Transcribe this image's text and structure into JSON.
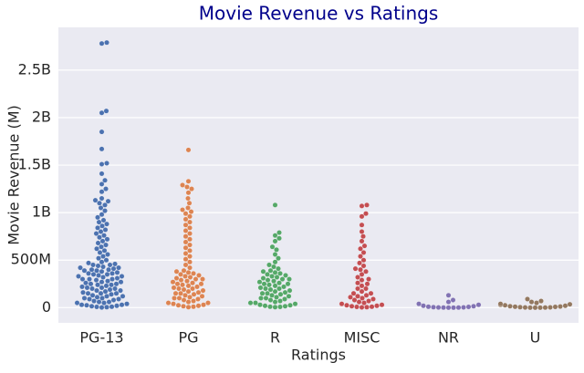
{
  "chart_data": {
    "type": "swarm",
    "title": "Movie Revenue vs Ratings",
    "x_label": "Ratings",
    "y_label": "Movie Revenue (M)",
    "categories": [
      "PG-13",
      "PG",
      "R",
      "MISC",
      "NR",
      "U"
    ],
    "colors": [
      "#4c72b0",
      "#dd8452",
      "#55a868",
      "#c44e52",
      "#8172b3",
      "#937860"
    ],
    "values": [
      [
        2790,
        2780,
        2070,
        2050,
        1850,
        1670,
        1520,
        1510,
        1410,
        1340,
        1300,
        1250,
        1220,
        1150,
        1130,
        1120,
        1100,
        1080,
        1050,
        1020,
        980,
        950,
        920,
        900,
        880,
        860,
        840,
        820,
        800,
        780,
        760,
        740,
        720,
        700,
        680,
        660,
        640,
        620,
        600,
        580,
        560,
        540,
        520,
        500,
        480,
        470,
        460,
        450,
        440,
        430,
        420,
        410,
        400,
        390,
        380,
        370,
        360,
        350,
        340,
        330,
        320,
        310,
        300,
        290,
        280,
        270,
        260,
        250,
        240,
        230,
        220,
        210,
        200,
        190,
        180,
        170,
        160,
        150,
        140,
        130,
        120,
        110,
        100,
        90,
        80,
        70,
        60,
        50,
        40,
        30,
        20,
        10,
        5,
        2,
        450,
        420,
        390,
        360,
        330,
        300,
        270,
        240,
        210,
        180,
        150,
        120,
        90,
        60,
        30,
        15,
        400,
        350,
        300,
        250,
        200,
        150,
        100,
        50,
        25,
        8
      ],
      [
        1660,
        1330,
        1290,
        1270,
        1250,
        1210,
        1150,
        1100,
        1050,
        1030,
        1010,
        990,
        960,
        930,
        900,
        870,
        840,
        810,
        780,
        750,
        720,
        690,
        660,
        630,
        600,
        570,
        540,
        510,
        480,
        450,
        420,
        390,
        370,
        350,
        330,
        310,
        290,
        270,
        250,
        230,
        210,
        190,
        170,
        150,
        130,
        110,
        90,
        70,
        50,
        30,
        10,
        380,
        340,
        300,
        260,
        220,
        180,
        140,
        100,
        60,
        20,
        5,
        360,
        320,
        280,
        240,
        200,
        160,
        120,
        80,
        40,
        15,
        300,
        250,
        200,
        150,
        100,
        50,
        25
      ],
      [
        1080,
        790,
        760,
        730,
        700,
        640,
        610,
        560,
        520,
        480,
        450,
        430,
        410,
        390,
        370,
        350,
        330,
        310,
        290,
        270,
        250,
        230,
        210,
        190,
        170,
        150,
        130,
        110,
        90,
        70,
        50,
        30,
        10,
        380,
        340,
        300,
        260,
        220,
        180,
        140,
        100,
        60,
        20,
        5,
        360,
        320,
        280,
        240,
        200,
        160,
        120,
        80,
        40,
        15,
        300,
        250,
        200,
        150,
        100,
        50,
        25,
        8
      ],
      [
        1080,
        1070,
        990,
        960,
        870,
        800,
        750,
        700,
        650,
        620,
        580,
        540,
        500,
        470,
        440,
        410,
        380,
        350,
        320,
        290,
        260,
        230,
        200,
        170,
        150,
        130,
        110,
        90,
        70,
        50,
        30,
        20,
        10,
        5,
        400,
        300,
        250,
        200,
        150,
        120,
        100,
        80,
        60,
        40,
        25,
        15,
        8,
        3
      ],
      [
        130,
        80,
        60,
        40,
        30,
        20,
        15,
        10,
        8,
        5,
        3,
        2,
        1,
        1,
        0,
        0
      ],
      [
        90,
        70,
        60,
        50,
        40,
        35,
        30,
        25,
        20,
        15,
        12,
        10,
        8,
        5,
        3,
        2,
        1,
        0,
        0,
        0
      ]
    ],
    "ylim": [
      -160,
      2950
    ],
    "yticks": [
      0,
      {
        "value": 500,
        "label": "500M"
      },
      {
        "value": 1000,
        "label": "1B"
      },
      {
        "value": 1500,
        "label": "1.5B"
      },
      {
        "value": 2000,
        "label": "2B"
      },
      {
        "value": 2500,
        "label": "2.5B"
      }
    ],
    "grid": true
  }
}
